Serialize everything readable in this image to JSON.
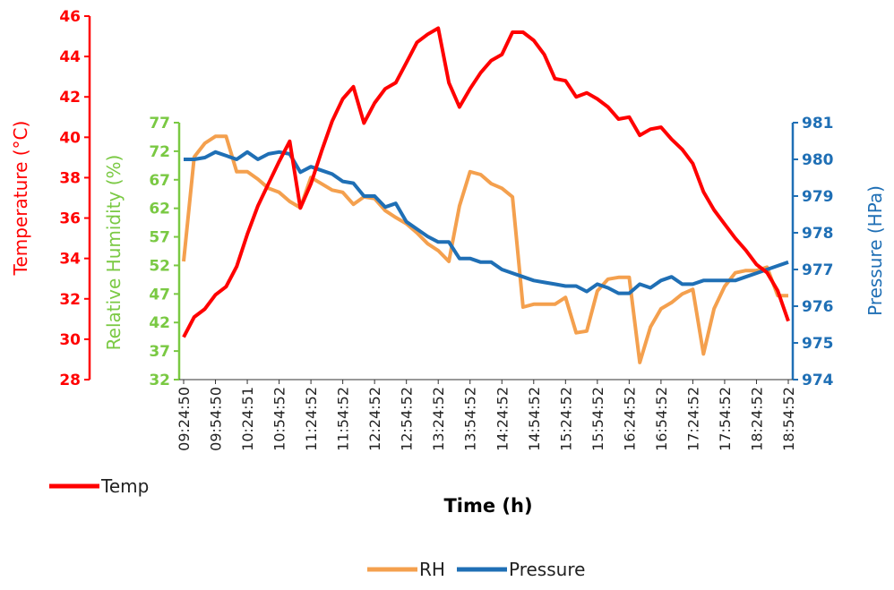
{
  "chart_data": {
    "type": "line",
    "x_label": "Time (h)",
    "y_label": "Temperature (°C)",
    "y2_label": "Pressure (HPa)",
    "y3_label": "Relative Humidity (%)",
    "categories": [
      "09:24:50",
      null,
      null,
      "09:54:50",
      null,
      null,
      "10:24:51",
      null,
      null,
      "10:54:52",
      null,
      null,
      "11:24:52",
      null,
      null,
      "11:54:52",
      null,
      null,
      "12:24:52",
      null,
      null,
      "12:54:52",
      null,
      null,
      "13:24:52",
      null,
      null,
      "13:54:52",
      null,
      null,
      "14:24:52",
      null,
      null,
      "14:54:52",
      null,
      null,
      "15:24:52",
      null,
      null,
      "15:54:52",
      null,
      null,
      "16:24:52",
      null,
      null,
      "16:54:52",
      null,
      null,
      "17:24:52",
      null,
      null,
      "17:54:52",
      null,
      null,
      "18:24:52",
      null,
      null,
      "18:54:52"
    ],
    "ylim": [
      28,
      46
    ],
    "yticks": [
      28,
      30,
      32,
      34,
      36,
      38,
      40,
      42,
      44,
      46
    ],
    "y_color": "#ff0000",
    "y2lim": [
      974,
      981
    ],
    "y2ticks": [
      974,
      975,
      976,
      977,
      978,
      979,
      980,
      981
    ],
    "y2_color": "#1f6fb5",
    "y3lim": [
      32,
      77
    ],
    "y3ticks": [
      32,
      37,
      42,
      47,
      52,
      57,
      62,
      67,
      72,
      77
    ],
    "y3_color": "#7ac943",
    "series": [
      {
        "name": "Temp",
        "color": "#ff0000",
        "axis": "y",
        "values": [
          30.1,
          31.1,
          31.5,
          32.2,
          32.6,
          33.6,
          35.2,
          36.6,
          37.7,
          38.8,
          39.8,
          36.5,
          37.7,
          39.3,
          40.8,
          41.9,
          42.5,
          40.7,
          41.7,
          42.4,
          42.7,
          43.7,
          44.7,
          45.1,
          45.4,
          42.7,
          41.5,
          42.4,
          43.2,
          43.8,
          44.1,
          45.2,
          45.2,
          44.8,
          44.1,
          42.9,
          42.8,
          42.0,
          42.2,
          41.9,
          41.5,
          40.9,
          41.0,
          40.1,
          40.4,
          40.5,
          39.9,
          39.4,
          38.7,
          37.3,
          36.4,
          35.7,
          35.0,
          34.4,
          33.7,
          33.3,
          32.4,
          30.9
        ]
      },
      {
        "name": "RH",
        "color": "#f4a04e",
        "axis": "y3",
        "values": [
          52.7,
          71.0,
          73.4,
          74.6,
          74.6,
          68.4,
          68.4,
          67.1,
          65.5,
          64.8,
          63.2,
          62.1,
          67.4,
          66.3,
          65.2,
          64.8,
          62.7,
          64.0,
          63.7,
          61.6,
          60.4,
          59.3,
          57.7,
          55.8,
          54.6,
          52.7,
          62.4,
          68.4,
          67.9,
          66.3,
          65.5,
          64.0,
          44.7,
          45.2,
          45.2,
          45.2,
          46.4,
          40.2,
          40.5,
          47.5,
          49.6,
          49.9,
          49.9,
          35.0,
          41.2,
          44.4,
          45.5,
          47.0,
          47.8,
          36.5,
          44.4,
          48.3,
          50.7,
          51.1,
          51.1,
          51.7,
          46.7,
          46.7
        ]
      },
      {
        "name": "Pressure",
        "color": "#1f6fb5",
        "axis": "y2",
        "values": [
          980.0,
          980.0,
          980.05,
          980.2,
          980.1,
          980.0,
          980.2,
          980.0,
          980.15,
          980.2,
          980.15,
          979.65,
          979.8,
          979.7,
          979.6,
          979.4,
          979.35,
          979.0,
          979.0,
          978.7,
          978.8,
          978.3,
          978.1,
          977.9,
          977.75,
          977.75,
          977.3,
          977.3,
          977.2,
          977.2,
          977.0,
          976.9,
          976.8,
          976.7,
          976.65,
          976.6,
          976.55,
          976.55,
          976.4,
          976.6,
          976.5,
          976.35,
          976.35,
          976.6,
          976.5,
          976.7,
          976.8,
          976.6,
          976.6,
          976.7,
          976.7,
          976.7,
          976.7,
          976.8,
          976.9,
          977.0,
          977.1,
          977.2
        ]
      }
    ]
  }
}
